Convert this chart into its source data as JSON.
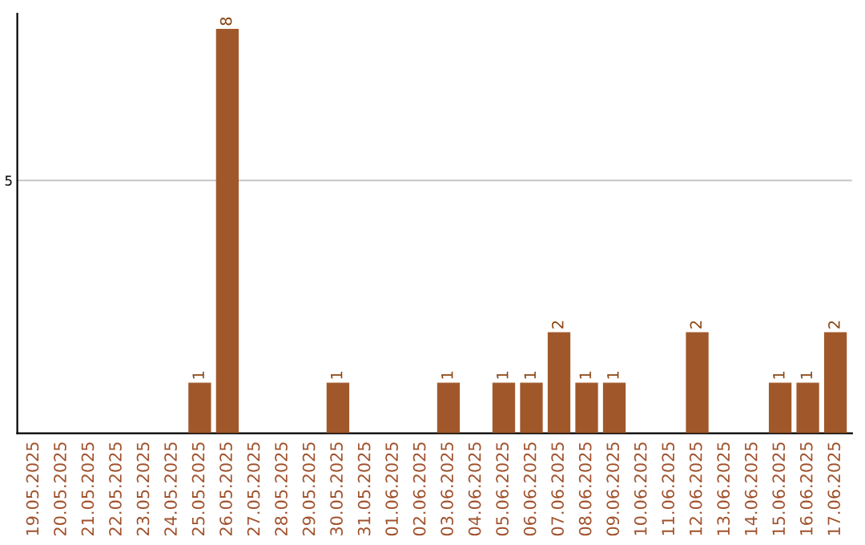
{
  "chart_data": {
    "type": "bar",
    "categories": [
      "19.05.2025",
      "20.05.2025",
      "21.05.2025",
      "22.05.2025",
      "23.05.2025",
      "24.05.2025",
      "25.05.2025",
      "26.05.2025",
      "27.05.2025",
      "28.05.2025",
      "29.05.2025",
      "30.05.2025",
      "31.05.2025",
      "01.06.2025",
      "02.06.2025",
      "03.06.2025",
      "04.06.2025",
      "05.06.2025",
      "06.06.2025",
      "07.06.2025",
      "08.06.2025",
      "09.06.2025",
      "10.06.2025",
      "11.06.2025",
      "12.06.2025",
      "13.06.2025",
      "14.06.2025",
      "15.06.2025",
      "16.06.2025",
      "17.06.2025"
    ],
    "values": [
      0,
      0,
      0,
      0,
      0,
      0,
      1,
      8,
      0,
      0,
      0,
      1,
      0,
      0,
      0,
      1,
      0,
      1,
      1,
      2,
      1,
      1,
      0,
      0,
      2,
      0,
      0,
      1,
      1,
      2
    ],
    "value_labels": [
      null,
      null,
      null,
      null,
      null,
      null,
      "1",
      "8",
      null,
      null,
      null,
      "1",
      null,
      null,
      null,
      "1",
      null,
      "1",
      "1",
      "2",
      "1",
      "1",
      null,
      null,
      "2",
      null,
      null,
      "1",
      "1",
      "2"
    ],
    "color": "#a0582a",
    "ylim": [
      0,
      8.3
    ],
    "yticks": [
      5
    ],
    "grid": "y"
  }
}
